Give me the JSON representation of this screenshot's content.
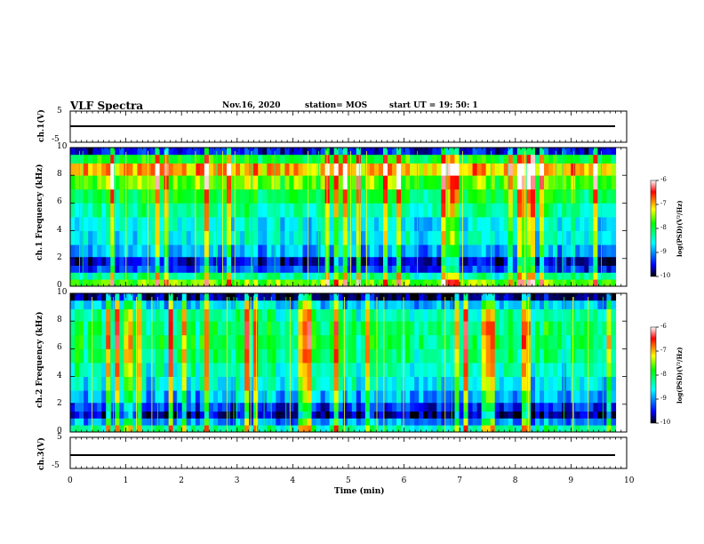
{
  "header": {
    "title": "VLF Spectra",
    "date": "Nov.16, 2020",
    "station": "station= MOS",
    "start": "start  UT  =   19: 50: 1"
  },
  "chart_data": [
    {
      "type": "line",
      "panel": "ch1-waveform",
      "ylabel": "ch.1(V)",
      "yticks": [
        "5",
        "-5"
      ],
      "ylim": [
        -5,
        5
      ],
      "x": [
        0,
        9.8
      ],
      "values": [
        0,
        0
      ],
      "note_color": "#000000"
    },
    {
      "type": "heatmap",
      "panel": "ch1-spectrogram",
      "ylabel": "ch.1 Frequency  (kHz)",
      "yticks": [
        "0",
        "2",
        "4",
        "6",
        "8",
        "10"
      ],
      "ylim": [
        0,
        10
      ],
      "xlim": [
        0,
        9.8
      ],
      "colorbar": {
        "label": "log(PSD)(V²/Hz)",
        "ticks": [
          "-6",
          "-7",
          "-8",
          "-9",
          "-10"
        ],
        "range": [
          -10,
          -6
        ]
      },
      "band_profile": [
        {
          "f": 0.25,
          "level": -7.6
        },
        {
          "f": 0.75,
          "level": -8.3
        },
        {
          "f": 1.25,
          "level": -9.3
        },
        {
          "f": 1.75,
          "level": -9.6
        },
        {
          "f": 2.5,
          "level": -8.9
        },
        {
          "f": 3.5,
          "level": -8.6
        },
        {
          "f": 4.5,
          "level": -8.6
        },
        {
          "f": 5.5,
          "level": -8.3
        },
        {
          "f": 6.5,
          "level": -8.0
        },
        {
          "f": 7.5,
          "level": -7.6
        },
        {
          "f": 8.5,
          "level": -7.0
        },
        {
          "f": 9.25,
          "level": -7.9
        },
        {
          "f": 9.75,
          "level": -9.5
        }
      ]
    },
    {
      "type": "heatmap",
      "panel": "ch2-spectrogram",
      "ylabel": "ch.2 Frequency  (kHz)",
      "yticks": [
        "0",
        "2",
        "4",
        "6",
        "8",
        "10"
      ],
      "ylim": [
        0,
        10
      ],
      "xlim": [
        0,
        9.8
      ],
      "colorbar": {
        "label": "log(PSD)(V²/Hz)",
        "ticks": [
          "-6",
          "-7",
          "-8",
          "-9",
          "-10"
        ],
        "range": [
          -10,
          -6
        ]
      },
      "band_profile": [
        {
          "f": 0.25,
          "level": -8.3
        },
        {
          "f": 0.75,
          "level": -9.0
        },
        {
          "f": 1.25,
          "level": -9.7
        },
        {
          "f": 1.75,
          "level": -9.4
        },
        {
          "f": 2.5,
          "level": -8.9
        },
        {
          "f": 3.5,
          "level": -8.6
        },
        {
          "f": 4.5,
          "level": -8.4
        },
        {
          "f": 5.5,
          "level": -8.2
        },
        {
          "f": 6.5,
          "level": -8.1
        },
        {
          "f": 7.5,
          "level": -8.1
        },
        {
          "f": 8.5,
          "level": -8.3
        },
        {
          "f": 9.25,
          "level": -8.8
        },
        {
          "f": 9.75,
          "level": -9.8
        }
      ]
    },
    {
      "type": "line",
      "panel": "ch3-waveform",
      "ylabel": "ch.3(V)",
      "yticks": [
        "5",
        "-5"
      ],
      "ylim": [
        -5,
        5
      ],
      "x": [
        0,
        9.8
      ],
      "values": [
        0,
        0
      ]
    }
  ],
  "xaxis": {
    "label": "Time  (min)",
    "ticks": [
      "0",
      "1",
      "2",
      "3",
      "4",
      "5",
      "6",
      "7",
      "8",
      "9",
      "10"
    ],
    "range": [
      0,
      10
    ]
  },
  "colors": {
    "scale": [
      "#000000",
      "#0000ff",
      "#00ffff",
      "#00ff00",
      "#ffff00",
      "#ff0000",
      "#ffffff"
    ]
  }
}
